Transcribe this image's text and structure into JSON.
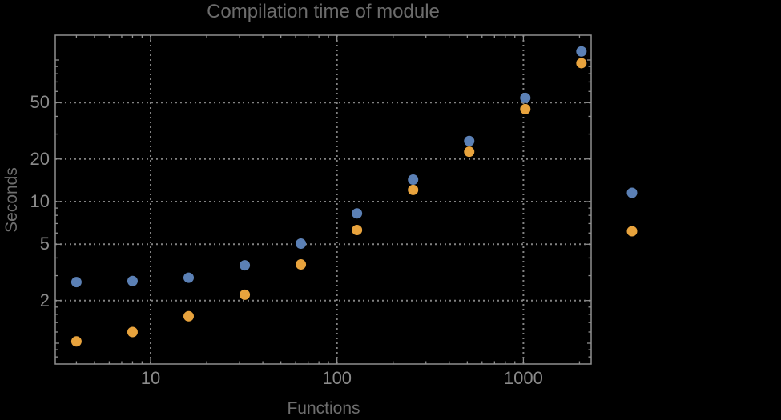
{
  "page": {
    "background": "#000000",
    "description": "Log-log scatter plot of module compilation time versus number of functions, two unlabeled series (blue and orange), dark background"
  },
  "colors": {
    "background": "#000000",
    "frame": "#8f8f8f",
    "grid": "#828282",
    "tick_label": "#8a8a8a",
    "title_text": "#6c6c6c",
    "axis_label_text": "#6e6e6e",
    "series1": "#5b80b5",
    "series2": "#e8a33d"
  },
  "chart_data": {
    "type": "scatter",
    "title": "Compilation time of module",
    "xlabel": "Functions",
    "ylabel": "Seconds",
    "x_scale": "log",
    "y_scale": "log",
    "x_range": [
      3.08,
      2310
    ],
    "y_range": [
      0.713,
      149.7
    ],
    "grid": "dotted gridlines at labeled ticks only",
    "legend_position": "right of plot, markers only (labels not visible)",
    "x": [
      4,
      8,
      16,
      32,
      64,
      128,
      256,
      512,
      1024,
      2048
    ],
    "series": [
      {
        "name": "series-1",
        "color": "#5b80b5",
        "marker": "filled-circle",
        "values": [
          2.7,
          2.75,
          2.9,
          3.55,
          5.05,
          8.25,
          14.3,
          26.8,
          54,
          115
        ]
      },
      {
        "name": "series-2",
        "color": "#e8a33d",
        "marker": "filled-circle",
        "values": [
          1.03,
          1.2,
          1.55,
          2.2,
          3.6,
          6.3,
          12.1,
          22.5,
          45,
          95
        ]
      }
    ],
    "x_ticks": {
      "labeled_values": [
        10,
        100,
        1000
      ],
      "labels": [
        "10",
        "100",
        "1000"
      ],
      "minor": [
        4,
        5,
        6,
        7,
        8,
        9,
        20,
        30,
        40,
        50,
        60,
        70,
        80,
        90,
        200,
        300,
        400,
        500,
        600,
        700,
        800,
        900,
        2000
      ]
    },
    "y_ticks": {
      "labeled_values": [
        50,
        20,
        10,
        5,
        2
      ],
      "labels": [
        "50",
        "20",
        "10",
        "5",
        "2"
      ],
      "semi": [
        100,
        1
      ],
      "minor": [
        0.8,
        0.9,
        1.2,
        1.4,
        1.6,
        1.8,
        3,
        4,
        6,
        7,
        8,
        9,
        30,
        40,
        60,
        70,
        80,
        90
      ]
    },
    "x_gridlines": [
      10,
      100,
      1000
    ],
    "y_gridlines": [
      50,
      20,
      10,
      5,
      2
    ],
    "legend": {
      "labels_visible": false,
      "markers": [
        {
          "series": "series-1",
          "color": "#5b80b5"
        },
        {
          "series": "series-2",
          "color": "#e8a33d"
        }
      ]
    }
  }
}
